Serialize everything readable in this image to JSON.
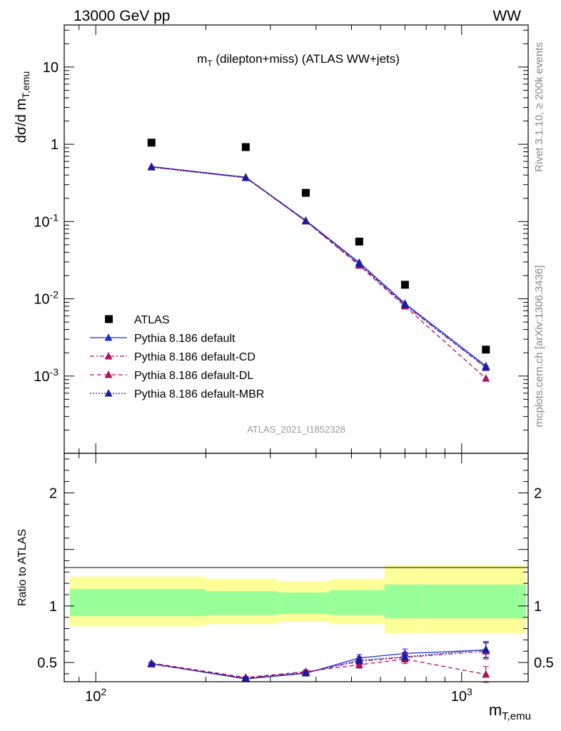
{
  "header": {
    "energy_label": "13000 GeV pp",
    "process_label": "WW"
  },
  "side_labels": {
    "rivet": "Rivet 3.1.10, ≥ 200k events",
    "mcplots": "mcplots.cern.ch [arXiv:1306.3436]"
  },
  "watermark": "ATLAS_2021_I1852328",
  "chart_data": [
    {
      "type": "scatter",
      "panel": "main",
      "title": "m_T (dilepton+miss) (ATLAS WW+jets)",
      "ylabel": "dσ/d m_T,emu",
      "yscale": "log",
      "ylim": [
        0.0001,
        35
      ],
      "xscale": "log",
      "xlim": [
        82,
        1520
      ],
      "ytick_labels": [
        "10^-3",
        "10^-2",
        "10^-1",
        "1",
        "10"
      ],
      "x": [
        142,
        257,
        375,
        525,
        700,
        1165
      ],
      "xbins": [
        [
          85,
          200
        ],
        [
          200,
          315
        ],
        [
          315,
          435
        ],
        [
          435,
          615
        ],
        [
          615,
          785
        ],
        [
          785,
          1500
        ]
      ],
      "series": [
        {
          "name": "ATLAS",
          "color": "#000000",
          "marker": "square",
          "values": [
            1.05,
            0.92,
            0.235,
            0.055,
            0.0152,
            0.0022
          ]
        },
        {
          "name": "Pythia 8.186 default",
          "color": "#1a2ed1",
          "marker": "triangle",
          "line": "solid",
          "values": [
            0.515,
            0.375,
            0.103,
            0.0295,
            0.0087,
            0.00135
          ]
        },
        {
          "name": "Pythia 8.186 default-CD",
          "color": "#b01060",
          "marker": "triangle",
          "line": "dashdot",
          "values": [
            0.51,
            0.37,
            0.101,
            0.0278,
            0.0083,
            0.00128
          ]
        },
        {
          "name": "Pythia 8.186 default-DL",
          "color": "#b01060",
          "marker": "triangle",
          "line": "dashed",
          "values": [
            0.51,
            0.37,
            0.101,
            0.027,
            0.008,
            0.00093
          ]
        },
        {
          "name": "Pythia 8.186 default-MBR",
          "color": "#1a1aa0",
          "marker": "triangle",
          "line": "dotted",
          "values": [
            0.505,
            0.368,
            0.102,
            0.0285,
            0.0084,
            0.0013
          ]
        }
      ],
      "legend_position": "lower-left"
    },
    {
      "type": "line",
      "panel": "ratio",
      "ylabel": "Ratio to ATLAS",
      "xlabel": "m_T,emu",
      "ylim": [
        0.33,
        2.35
      ],
      "ytick_labels": [
        "0.5",
        "1",
        "2"
      ],
      "xtick_labels": [
        "10^2",
        "10^3"
      ],
      "x": [
        142,
        257,
        375,
        525,
        700,
        1165
      ],
      "bands": {
        "yellow": [
          [
            0.82,
            1.26
          ],
          [
            0.84,
            1.24
          ],
          [
            0.86,
            1.22
          ],
          [
            0.84,
            1.24
          ],
          [
            0.76,
            1.36
          ],
          [
            0.76,
            1.36
          ]
        ],
        "green": [
          [
            0.91,
            1.15
          ],
          [
            0.92,
            1.13
          ],
          [
            0.93,
            1.12
          ],
          [
            0.92,
            1.14
          ],
          [
            0.89,
            1.19
          ],
          [
            0.89,
            1.19
          ]
        ]
      },
      "series": [
        {
          "name": "Pythia 8.186 default",
          "color": "#1a2ed1",
          "line": "solid",
          "values": [
            0.49,
            0.355,
            0.405,
            0.54,
            0.58,
            0.61
          ],
          "errors": [
            0.01,
            0.01,
            0.015,
            0.03,
            0.04,
            0.07
          ]
        },
        {
          "name": "Pythia 8.186 default-CD",
          "color": "#b01060",
          "line": "dashdot",
          "values": [
            0.485,
            0.362,
            0.412,
            0.51,
            0.545,
            0.6
          ],
          "errors": [
            0.01,
            0.01,
            0.015,
            0.03,
            0.04,
            0.07
          ]
        },
        {
          "name": "Pythia 8.186 default-DL",
          "color": "#b01060",
          "line": "dashed",
          "values": [
            0.495,
            0.368,
            0.42,
            0.48,
            0.53,
            0.395
          ],
          "errors": [
            0.01,
            0.01,
            0.015,
            0.03,
            0.04,
            0.07
          ]
        },
        {
          "name": "Pythia 8.186 default-MBR",
          "color": "#1a1aa0",
          "line": "dotted",
          "values": [
            0.49,
            0.36,
            0.408,
            0.52,
            0.55,
            0.615
          ],
          "errors": [
            0.01,
            0.01,
            0.015,
            0.03,
            0.04,
            0.07
          ]
        }
      ]
    }
  ]
}
